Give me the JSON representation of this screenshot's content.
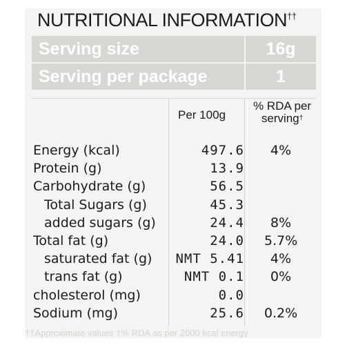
{
  "title": "NUTRITIONAL INFORMATION",
  "title_mark": "††",
  "serving_size": {
    "label": "Serving size",
    "value": "16g"
  },
  "servings_per_package": {
    "label": "Serving per package",
    "value": "1"
  },
  "columns": {
    "per100g": "Per 100g",
    "rda_line1": "% RDA per",
    "rda_line2": "serving",
    "rda_mark": "†"
  },
  "rows": [
    {
      "name": "Energy (kcal)",
      "value": "497.6",
      "rda": "4%",
      "indent": false
    },
    {
      "name": "Protein (g)",
      "value": "13.9",
      "rda": "",
      "indent": false
    },
    {
      "name": "Carbohydrate (g)",
      "value": "56.5",
      "rda": "",
      "indent": false
    },
    {
      "name": "Total Sugars (g)",
      "value": "45.3",
      "rda": "",
      "indent": true
    },
    {
      "name": "added sugars (g)",
      "value": "24.4",
      "rda": "8%",
      "indent": true
    },
    {
      "name": "Total fat (g)",
      "value": "24.0",
      "rda": "5.7%",
      "indent": false
    },
    {
      "name": "saturated fat (g)",
      "value": "NMT 5.41",
      "rda": "4%",
      "indent": true
    },
    {
      "name": "trans fat (g)",
      "value": "NMT 0.1",
      "rda": "0%",
      "indent": true
    },
    {
      "name": "cholesterol (mg)",
      "value": "0.0",
      "rda": "",
      "indent": false
    },
    {
      "name": "Sodium (mg)",
      "value": "25.6",
      "rda": "0.2%",
      "indent": false
    }
  ],
  "footnote": "††Approximate values  †% RDA as per 2000 kcal energy"
}
